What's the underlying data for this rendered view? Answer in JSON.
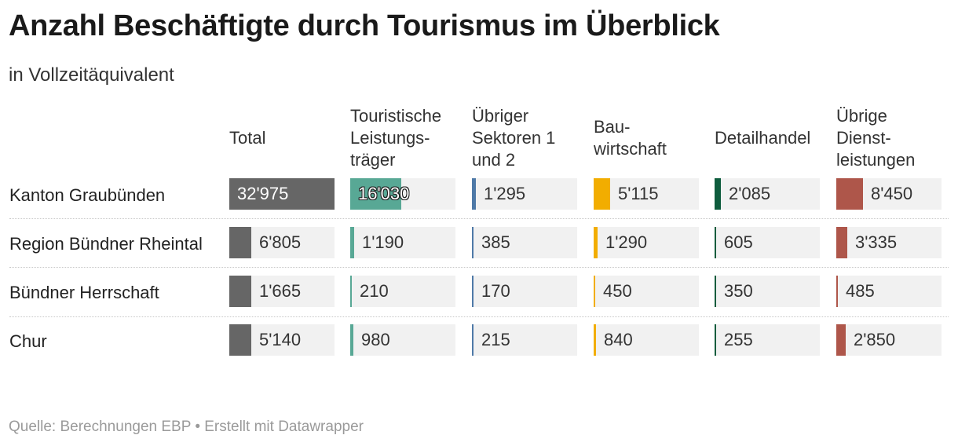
{
  "title": "Anzahl Beschäftigte durch Tourismus im Überblick",
  "subtitle": "in Vollzeitäquivalent",
  "footer": "Quelle: Berechnungen EBP • Erstellt mit Datawrapper",
  "chart_data": {
    "type": "table",
    "title": "Anzahl Beschäftigte durch Tourismus im Überblick",
    "subtitle": "in Vollzeitäquivalent",
    "unit": "Vollzeitäquivalent",
    "columns": [
      {
        "key": "total",
        "label": "Total",
        "color": "#666666"
      },
      {
        "key": "touristische",
        "label": "Touristische\nLeistungs-\nträger",
        "color": "#58a895"
      },
      {
        "key": "uebrige_sektoren",
        "label": "Übriger\nSektoren 1\nund 2",
        "color": "#4e79a7"
      },
      {
        "key": "bau",
        "label": "Bau-\nwirtschaft",
        "color": "#f2ad00"
      },
      {
        "key": "detailhandel",
        "label": "Detailhandel",
        "color": "#0e5c3d"
      },
      {
        "key": "dienstleistungen",
        "label": "Übrige\nDienst-\nleistungen",
        "color": "#ae564a"
      }
    ],
    "rows": [
      {
        "label": "Kanton Graubünden",
        "values": [
          32975,
          16030,
          1295,
          5115,
          2085,
          8450
        ],
        "display": [
          "32'975",
          "16'030",
          "1'295",
          "5'115",
          "2'085",
          "8'450"
        ]
      },
      {
        "label": "Region Bündner Rheintal",
        "values": [
          6805,
          1190,
          385,
          1290,
          605,
          3335
        ],
        "display": [
          "6'805",
          "1'190",
          "385",
          "1'290",
          "605",
          "3'335"
        ]
      },
      {
        "label": "Bündner Herrschaft",
        "values": [
          1665,
          210,
          170,
          450,
          350,
          485
        ],
        "display": [
          "1'665",
          "210",
          "170",
          "450",
          "350",
          "485"
        ]
      },
      {
        "label": "Chur",
        "values": [
          5140,
          980,
          215,
          840,
          255,
          2850
        ],
        "display": [
          "5'140",
          "980",
          "215",
          "840",
          "255",
          "2'850"
        ]
      }
    ],
    "column_max": [
      32975,
      32975,
      32975,
      32975,
      32975,
      32975
    ]
  }
}
